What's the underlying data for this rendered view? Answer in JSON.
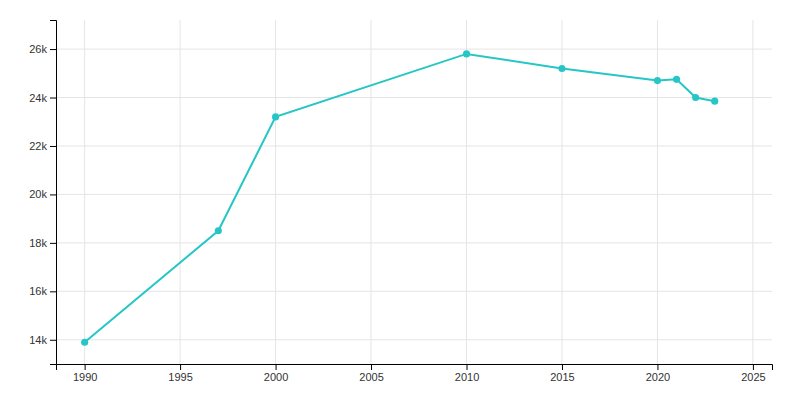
{
  "chart_data": {
    "type": "line",
    "x": [
      1990,
      1997,
      2000,
      2010,
      2015,
      2020,
      2021,
      2022,
      2023
    ],
    "values": [
      13900,
      18500,
      23200,
      25800,
      25200,
      24700,
      24750,
      24000,
      23850
    ],
    "color": "#26c6c6",
    "marker": "circle",
    "xlim": [
      1988.5,
      2026
    ],
    "ylim": [
      13000,
      27200
    ],
    "xticks": [
      1990,
      1995,
      2000,
      2005,
      2010,
      2015,
      2020,
      2025
    ],
    "yticks": [
      {
        "value": 14000,
        "label": "14k"
      },
      {
        "value": 16000,
        "label": "16k"
      },
      {
        "value": 18000,
        "label": "18k"
      },
      {
        "value": 20000,
        "label": "20k"
      },
      {
        "value": 22000,
        "label": "22k"
      },
      {
        "value": 24000,
        "label": "24k"
      },
      {
        "value": 26000,
        "label": "26k"
      }
    ],
    "grid": true
  }
}
